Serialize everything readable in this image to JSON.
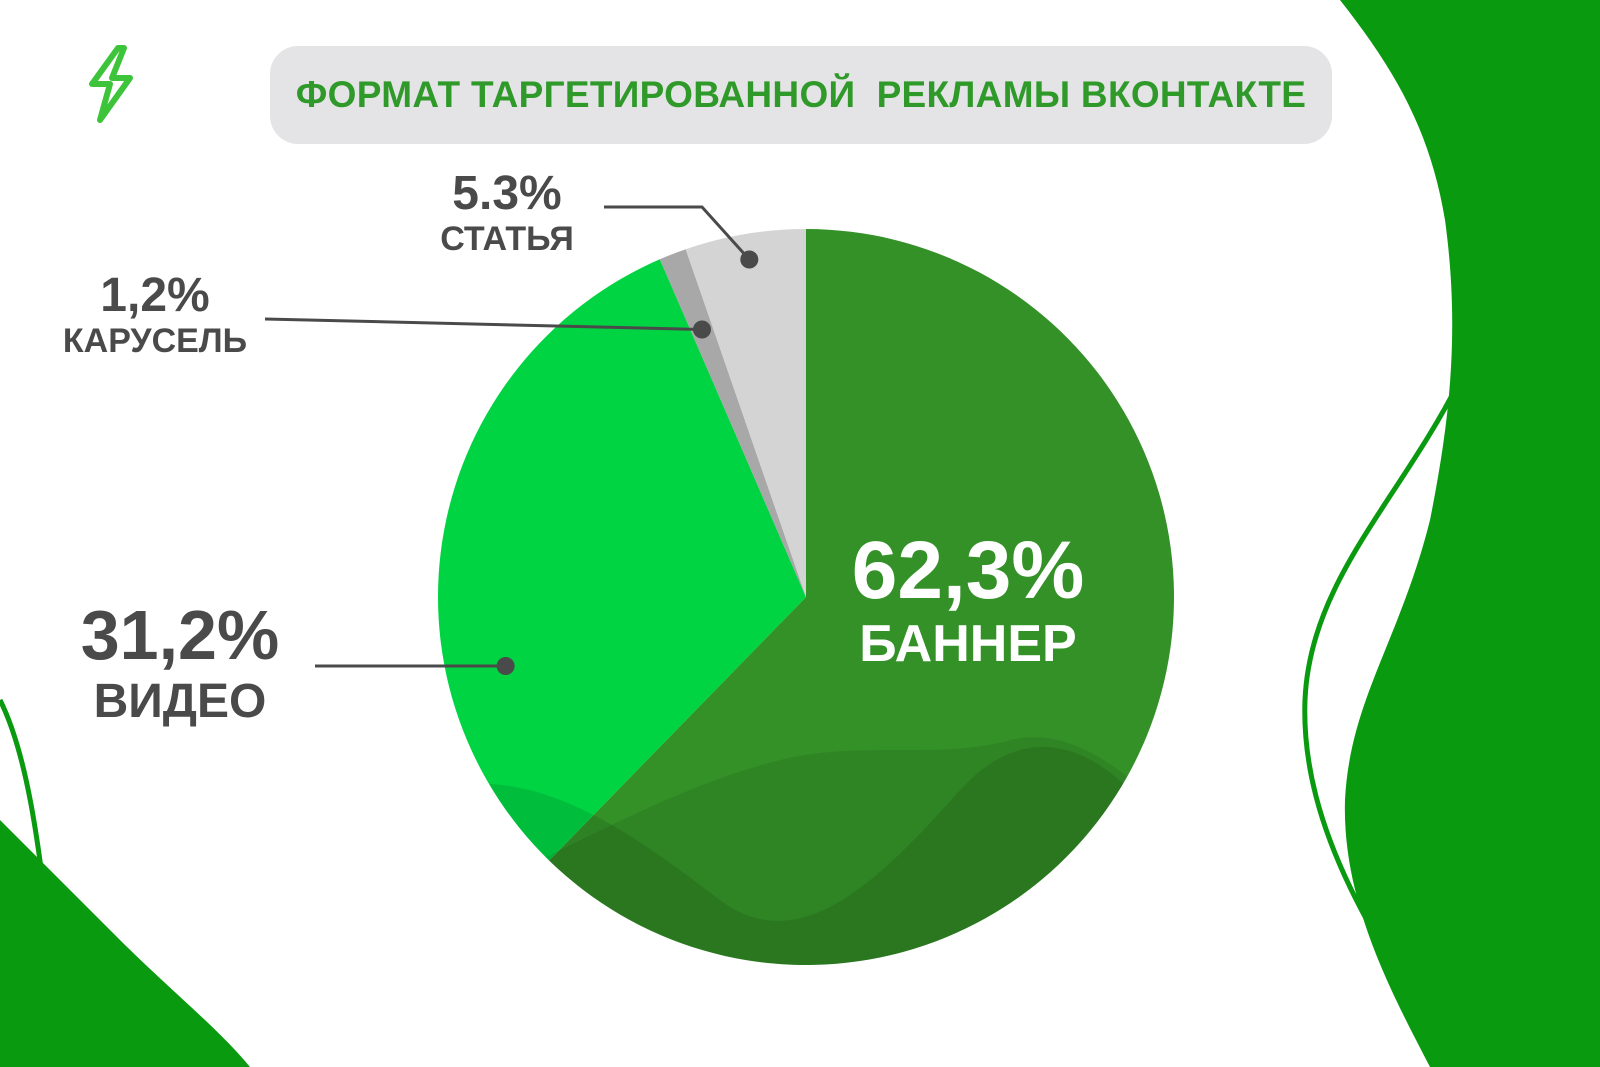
{
  "header": {
    "title": "ФОРМАТ ТАРГЕТИРОВАННОЙ  РЕКЛАМЫ ВКОНТАКТЕ"
  },
  "logo": {
    "icon": "lightning-bolt-icon",
    "color": "#3ec43a"
  },
  "colors": {
    "brand_green": "#0a9a10",
    "title_text": "#2f9a2a",
    "title_bg": "#e4e4e6",
    "label_text": "#4a4a4a"
  },
  "chart_data": {
    "type": "pie",
    "title": "ФОРМАТ ТАРГЕТИРОВАННОЙ  РЕКЛАМЫ ВКОНТАКТЕ",
    "start": "12 o'clock, clockwise",
    "slices": [
      {
        "label": "БАННЕР",
        "value": 62.3,
        "display": "62,3%",
        "color": "#349128"
      },
      {
        "label": "ВИДЕО",
        "value": 31.2,
        "display": "31,2%",
        "color": "#00d443"
      },
      {
        "label": "КАРУСЕЛЬ",
        "value": 1.2,
        "display": "1,2%",
        "color": "#a8a8a8"
      },
      {
        "label": "СТАТЬЯ",
        "value": 5.3,
        "display": "5.3%",
        "color": "#d4d4d4"
      }
    ]
  }
}
